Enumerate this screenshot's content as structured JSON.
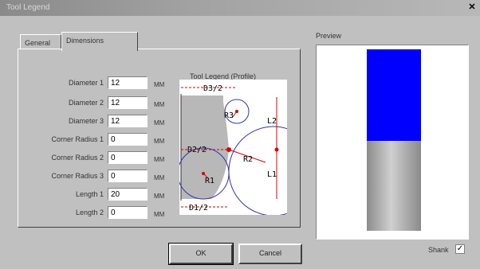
{
  "window": {
    "title": "Tool Legend",
    "close_glyph": "✕"
  },
  "tabs": [
    {
      "label": "General"
    },
    {
      "label": "Dimensions"
    }
  ],
  "fields": [
    {
      "label": "Diameter 1",
      "value": "12",
      "unit": "MM"
    },
    {
      "label": "Diameter 2",
      "value": "12",
      "unit": "MM"
    },
    {
      "label": "Diameter 3",
      "value": "12",
      "unit": "MM"
    },
    {
      "label": "Corner Radius 1",
      "value": "0",
      "unit": "MM"
    },
    {
      "label": "Corner Radius 2",
      "value": "0",
      "unit": "MM"
    },
    {
      "label": "Corner Radius 3",
      "value": "0",
      "unit": "MM"
    },
    {
      "label": "Length 1",
      "value": "20",
      "unit": "MM"
    },
    {
      "label": "Length 2",
      "value": "0",
      "unit": "MM"
    }
  ],
  "legend": {
    "title": "Tool Legend (Profile)",
    "labels": {
      "d3": "D3/2",
      "d2": "D2/2",
      "d1": "D1/2",
      "r1": "R1",
      "r2": "R2",
      "r3": "R3",
      "l1": "L1",
      "l2": "L2"
    }
  },
  "preview": {
    "label": "Preview",
    "cutter_color": "#0000ff",
    "shank_color": "#b0b0b0"
  },
  "buttons": {
    "ok": "OK",
    "cancel": "Cancel"
  },
  "shank": {
    "label": "Shank",
    "checked": true,
    "check_glyph": "✓"
  }
}
